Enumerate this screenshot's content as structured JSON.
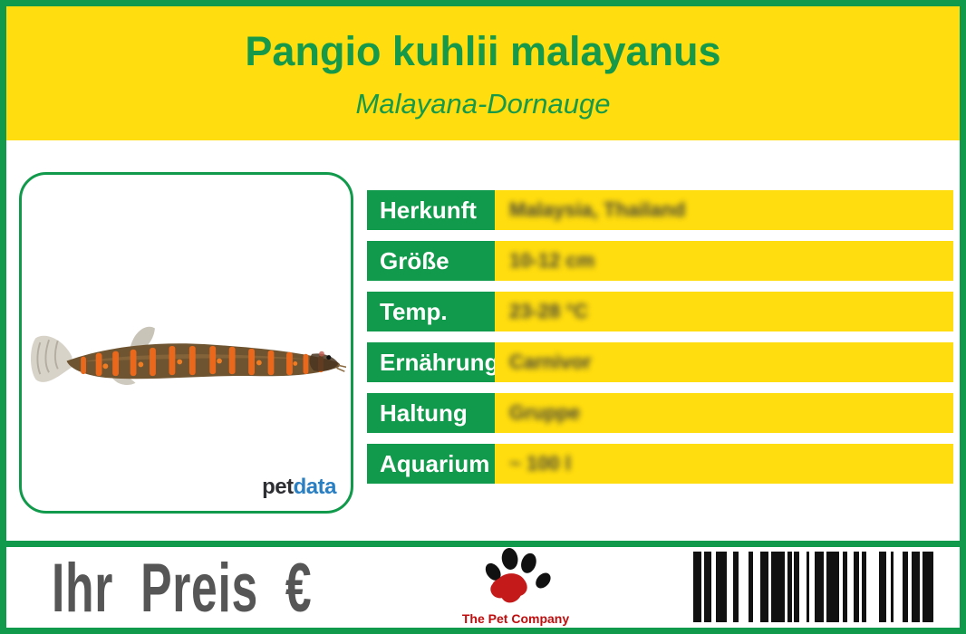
{
  "header": {
    "title": "Pangio kuhlii malayanus",
    "subtitle": "Malayana-Dornauge"
  },
  "photo": {
    "image_subject": "kuhli-loach-fish-photo",
    "logo_pet": "pet",
    "logo_data": "data"
  },
  "info_table": {
    "rows": [
      {
        "label": "Herkunft",
        "value": "Malaysia, Thailand"
      },
      {
        "label": "Größe",
        "value": "10-12 cm"
      },
      {
        "label": "Temp.",
        "value": "23-28 °C"
      },
      {
        "label": "Ernährung",
        "value": "Carnivor"
      },
      {
        "label": "Haltung",
        "value": "Gruppe"
      },
      {
        "label": "Aquarium",
        "value": "~ 100 l"
      }
    ]
  },
  "footer": {
    "price_label": "Ihr Preis €",
    "company": "The Pet Company",
    "barcode_bars": [
      9,
      3,
      8,
      5,
      12,
      7,
      6,
      11,
      5,
      8,
      9,
      3,
      15,
      3,
      5,
      2,
      6,
      8,
      3,
      6,
      10,
      3,
      14,
      4,
      5,
      7,
      6,
      3,
      5,
      14,
      8,
      5,
      3,
      10,
      6,
      4,
      9,
      3,
      12
    ]
  },
  "colors": {
    "brand_green": "#119a4b",
    "brand_yellow": "#ffdd0e",
    "label_text": "#ffffff",
    "value_text": "#45443a",
    "price_gray": "#565656",
    "company_red": "#c00d0d",
    "petdata_blue": "#2a7fc3",
    "petdata_dark": "#2e2f33"
  }
}
